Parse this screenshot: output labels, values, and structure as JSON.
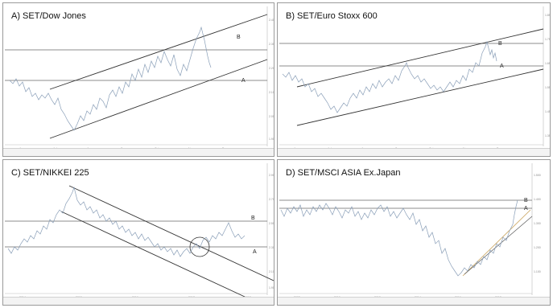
{
  "colors": {
    "price": "#8a9fb8",
    "channel": "#333333",
    "hline": "#666666",
    "trend": "#c9a25a",
    "axis_text": "#888888"
  },
  "panels": [
    {
      "title": "A) SET/Dow Jones"
    },
    {
      "title": "B) SET/Euro Stoxx 600"
    },
    {
      "title": "C) SET/NIKKEI 225"
    },
    {
      "title": "D) SET/MSCI ASIA Ex.Japan"
    }
  ],
  "chart_data": [
    {
      "type": "line",
      "title": "A) SET/Dow Jones",
      "x": [
        0,
        5,
        10,
        15,
        20,
        25,
        30,
        35,
        40,
        45,
        50,
        55,
        60,
        65,
        70,
        75,
        80,
        85,
        90,
        95,
        100
      ],
      "series": [
        {
          "values": [
            2.05,
            2.0,
            2.08,
            1.9,
            1.86,
            1.8,
            1.83,
            1.92,
            1.9,
            2.02,
            2.05,
            1.98,
            2.08,
            2.12,
            2.18,
            2.1,
            2.2,
            2.25,
            2.15,
            2.3,
            2.22
          ]
        }
      ],
      "annotations": [
        "B",
        "A"
      ],
      "ylim": [
        1.7,
        2.45
      ]
    },
    {
      "type": "line",
      "title": "B) SET/Euro Stoxx 600",
      "x": [
        0,
        5,
        10,
        15,
        20,
        25,
        30,
        35,
        40,
        45,
        50,
        55,
        60,
        65,
        70,
        75,
        80,
        85,
        90,
        95,
        100
      ],
      "series": [
        {
          "values": [
            1.52,
            1.55,
            1.5,
            1.47,
            1.45,
            1.5,
            1.55,
            1.53,
            1.58,
            1.62,
            1.66,
            1.6,
            1.58,
            1.62,
            1.64,
            1.6,
            1.66,
            1.72,
            1.68,
            1.76,
            1.72
          ]
        }
      ],
      "annotations": [
        "B",
        "A"
      ],
      "ylim": [
        1.35,
        1.85
      ]
    },
    {
      "type": "line",
      "title": "C) SET/NIKKEI 225",
      "x": [
        0,
        5,
        10,
        15,
        20,
        25,
        30,
        35,
        40,
        45,
        50,
        55,
        60,
        65,
        70,
        75,
        80,
        85,
        90,
        95,
        100
      ],
      "series": [
        {
          "values": [
            2.35,
            2.45,
            2.55,
            2.7,
            2.6,
            2.5,
            2.45,
            2.38,
            2.4,
            2.3,
            2.25,
            2.2,
            2.15,
            2.18,
            2.25,
            2.3,
            2.22,
            2.35,
            2.4,
            2.32,
            2.36
          ]
        }
      ],
      "annotations": [
        "B",
        "A"
      ],
      "ylim": [
        1.9,
        3.0
      ]
    },
    {
      "type": "line",
      "title": "D) SET/MSCI ASIA Ex.Japan",
      "x": [
        0,
        5,
        10,
        15,
        20,
        25,
        30,
        35,
        40,
        45,
        50,
        55,
        60,
        65,
        70,
        75,
        80,
        85,
        90,
        95,
        100
      ],
      "series": [
        {
          "values": [
            1.4,
            1.38,
            1.42,
            1.4,
            1.35,
            1.39,
            1.41,
            1.36,
            1.38,
            1.34,
            1.3,
            1.32,
            1.25,
            1.18,
            1.1,
            1.02,
            1.06,
            1.12,
            1.2,
            1.28,
            1.42
          ]
        }
      ],
      "annotations": [
        "B",
        "A"
      ],
      "ylim": [
        0.95,
        1.5
      ]
    }
  ]
}
